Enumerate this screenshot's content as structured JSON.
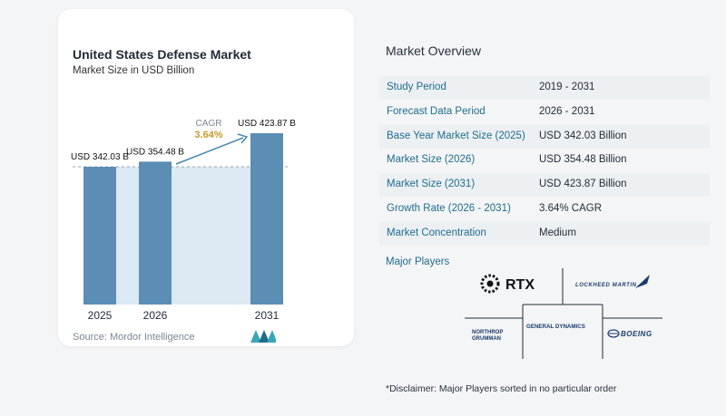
{
  "chart_panel": {
    "title": "United States Defense Market",
    "subtitle": "Market Size in USD Billion",
    "source": "Source: Mordor Intelligence",
    "cagr_label": "CAGR",
    "cagr_value": "3.64%"
  },
  "chart_data": {
    "type": "bar",
    "categories": [
      "2025",
      "2026",
      "2031"
    ],
    "values": [
      342.03,
      354.48,
      423.87
    ],
    "data_labels": [
      "USD 342.03 B",
      "USD 354.48 B",
      "USD 423.87 B"
    ],
    "title": "United States Defense Market",
    "subtitle": "Market Size in USD Billion",
    "bar_color": "#5b8db5",
    "band_color": "#dce8f2"
  },
  "overview": {
    "title": "Market Overview",
    "rows": [
      {
        "label": "Study Period",
        "value": "2019 - 2031"
      },
      {
        "label": "Forecast Data Period",
        "value": "2026 - 2031"
      },
      {
        "label": "Base Year Market Size (2025)",
        "value": "USD 342.03 Billion"
      },
      {
        "label": "Market Size (2026)",
        "value": "USD 354.48 Billion"
      },
      {
        "label": "Market Size (2031)",
        "value": "USD 423.87 Billion"
      },
      {
        "label": "Growth Rate (2026 - 2031)",
        "value": "3.64% CAGR"
      },
      {
        "label": "Market Concentration",
        "value": "Medium"
      }
    ]
  },
  "players": {
    "title": "Major Players",
    "names": [
      "RTX",
      "LOCKHEED MARTIN",
      "NORTHROP GRUMMAN",
      "GENERAL DYNAMICS",
      "BOEING"
    ]
  },
  "disclaimer": "*Disclaimer: Major Players sorted in no particular order",
  "colors": {
    "label_blue": "#1f6c8c",
    "shade": "#edf0f3"
  }
}
